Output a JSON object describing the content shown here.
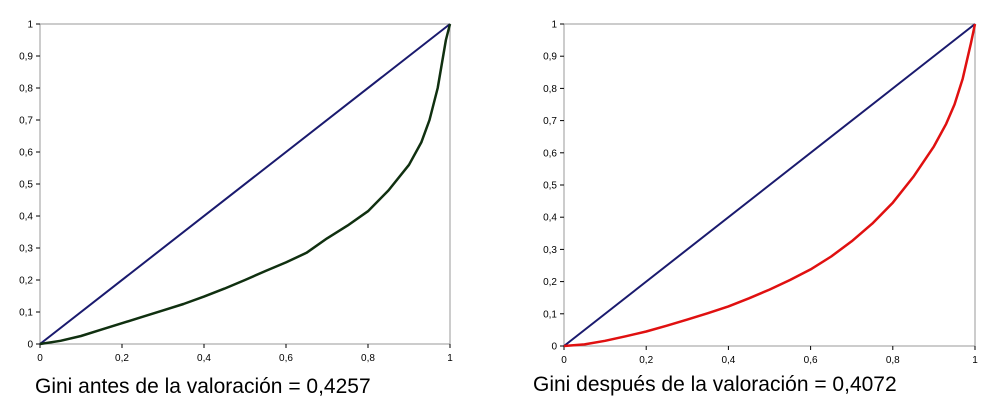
{
  "chart_data": [
    {
      "type": "line",
      "caption": "Gini antes de la valoración = 0,4257",
      "xlim": [
        0,
        1
      ],
      "ylim": [
        0,
        1
      ],
      "grid": false,
      "legend": "none",
      "x_ticks": [
        "0",
        "0,2",
        "0,4",
        "0,6",
        "0,8",
        "1"
      ],
      "y_ticks": [
        "0",
        "0,1",
        "0,2",
        "0,3",
        "0,4",
        "0,5",
        "0,6",
        "0,7",
        "0,8",
        "0,9",
        "1"
      ],
      "series": [
        {
          "color": "#1a1a6e",
          "x": [
            0,
            1
          ],
          "y": [
            0,
            1
          ]
        },
        {
          "color": "#103010",
          "x": [
            0,
            0.05,
            0.1,
            0.15,
            0.2,
            0.25,
            0.3,
            0.35,
            0.4,
            0.45,
            0.5,
            0.55,
            0.6,
            0.65,
            0.7,
            0.75,
            0.8,
            0.85,
            0.9,
            0.93,
            0.95,
            0.97,
            0.99,
            1
          ],
          "y": [
            0,
            0.01,
            0.025,
            0.045,
            0.065,
            0.085,
            0.105,
            0.125,
            0.148,
            0.173,
            0.2,
            0.228,
            0.255,
            0.285,
            0.33,
            0.37,
            0.415,
            0.48,
            0.56,
            0.63,
            0.7,
            0.8,
            0.95,
            1
          ]
        }
      ]
    },
    {
      "type": "line",
      "caption": "Gini después de la valoración = 0,4072",
      "xlim": [
        0,
        1
      ],
      "ylim": [
        0,
        1
      ],
      "grid": false,
      "legend": "none",
      "x_ticks": [
        "0",
        "0,2",
        "0,4",
        "0,6",
        "0,8",
        "1"
      ],
      "y_ticks": [
        "0",
        "0,1",
        "0,2",
        "0,3",
        "0,4",
        "0,5",
        "0,6",
        "0,7",
        "0,8",
        "0,9",
        "1"
      ],
      "series": [
        {
          "color": "#1a1a6e",
          "x": [
            0,
            1
          ],
          "y": [
            0,
            1
          ]
        },
        {
          "color": "#e01010",
          "x": [
            0,
            0.05,
            0.1,
            0.15,
            0.2,
            0.25,
            0.3,
            0.35,
            0.4,
            0.45,
            0.5,
            0.55,
            0.6,
            0.65,
            0.7,
            0.75,
            0.8,
            0.85,
            0.9,
            0.93,
            0.95,
            0.97,
            0.99,
            1
          ],
          "y": [
            0,
            0.005,
            0.016,
            0.03,
            0.045,
            0.063,
            0.082,
            0.102,
            0.123,
            0.148,
            0.175,
            0.205,
            0.238,
            0.278,
            0.325,
            0.38,
            0.445,
            0.525,
            0.62,
            0.69,
            0.75,
            0.83,
            0.94,
            1
          ]
        }
      ]
    }
  ]
}
